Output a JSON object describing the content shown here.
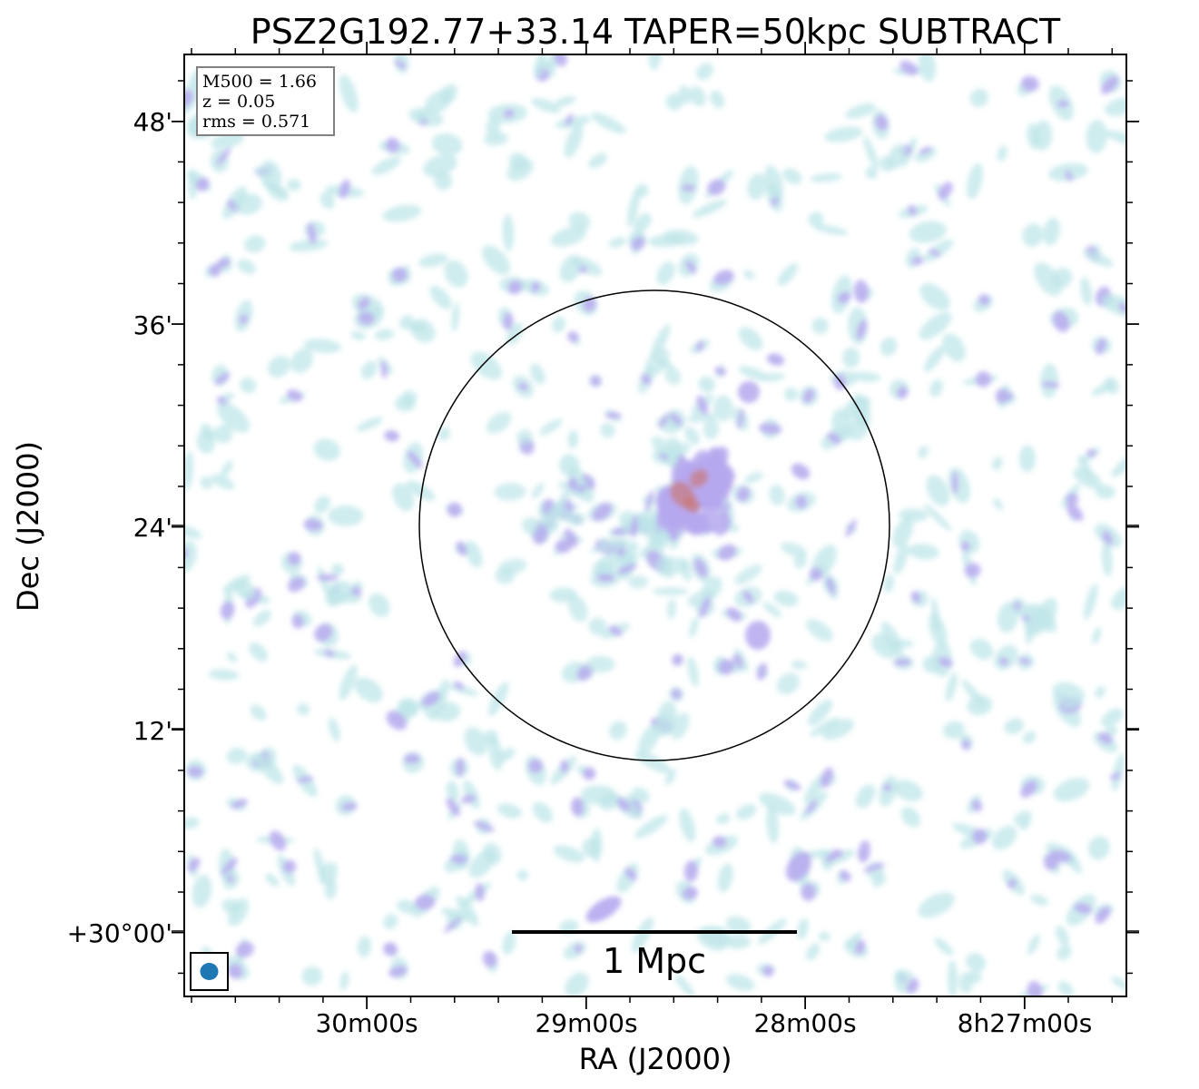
{
  "title": "PSZ2G192.77+33.14 TAPER=50kpc SUBTRACT",
  "xlabel": "RA (J2000)",
  "ylabel": "Dec (J2000)",
  "x_ticks": [
    "30m00s",
    "29m00s",
    "28m00s",
    "8h27m00s"
  ],
  "y_ticks": [
    "48'",
    "36'",
    "24'",
    "12'",
    "+30°00'"
  ],
  "info_box": {
    "m500": "M500 = 1.66",
    "z": "z = 0.05",
    "rms": "rms = 0.571"
  },
  "scalebar_label": "1 Mpc",
  "colors": {
    "low": "#bfe6e8",
    "mid": "#b6a8ef",
    "high": "#c97a7a",
    "beam": "#1f77b4",
    "frame": "#000000"
  }
}
